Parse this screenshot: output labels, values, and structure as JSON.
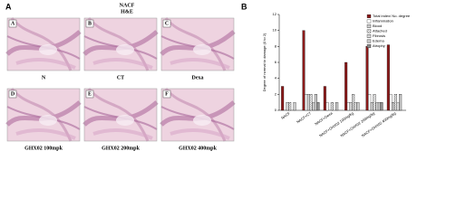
{
  "panel_a": {
    "label": "A",
    "title": "NACF",
    "subtitle": "H&E",
    "images": [
      {
        "letter": "A",
        "caption": "N"
      },
      {
        "letter": "B",
        "caption": "CT"
      },
      {
        "letter": "C",
        "caption": "Dexa"
      },
      {
        "letter": "D",
        "caption": "GHX02 100mpk"
      },
      {
        "letter": "E",
        "caption": "GHX02 200mpk"
      },
      {
        "letter": "F",
        "caption": "GHX02 400mpk"
      }
    ]
  },
  "panel_b": {
    "label": "B"
  },
  "chart_data": {
    "type": "bar",
    "y_label": "Degree of normal to damage (0 to 2)",
    "categories": [
      "NACF",
      "NACF+CT",
      "NACF+Dexa",
      "NACF+GHX02 100mg/kg",
      "NACF+GHX02 200mg/kg",
      "NACF+GHX02 400mg/kg"
    ],
    "ylim": [
      0,
      12
    ],
    "yticks": [
      0,
      2,
      4,
      6,
      8,
      10,
      12
    ],
    "series": [
      {
        "name": "Total index/ No. degree",
        "color": "#8b1a1a",
        "values": [
          3,
          10,
          3,
          6,
          8,
          8.2
        ]
      },
      {
        "name": "Inflammation",
        "color": "#ffffff",
        "values": [
          0,
          2,
          1,
          1,
          2,
          2
        ]
      },
      {
        "name": "Blood",
        "color": "#d0d0d0",
        "values": [
          1,
          2,
          0,
          1,
          1,
          1
        ]
      },
      {
        "name": "Attached",
        "color": "url(#hatch)",
        "values": [
          1,
          2,
          1,
          2,
          2,
          2
        ]
      },
      {
        "name": "Fibrosis",
        "color": "url(#dots)",
        "values": [
          0,
          1,
          0,
          1,
          1,
          1
        ]
      },
      {
        "name": "Edema",
        "color": "url(#cross)",
        "values": [
          1,
          2,
          1,
          1,
          1,
          2
        ]
      },
      {
        "name": "Atrophy",
        "color": "#909090",
        "values": [
          0,
          1,
          0,
          0,
          1,
          0
        ]
      }
    ]
  }
}
